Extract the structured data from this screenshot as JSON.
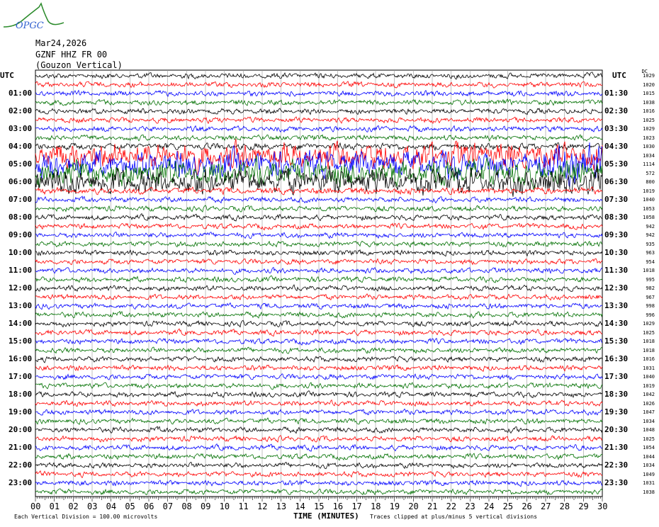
{
  "logo": {
    "text": "OPGC"
  },
  "header": {
    "date": "Mar24,2026",
    "station": "GZNF HHZ FR 00",
    "name": "(Gouzon Vertical)"
  },
  "chart_data": {
    "type": "line",
    "subtype": "helicorder",
    "left_axis_title": "UTC",
    "right_axis_title": "UTC",
    "right_column_header": "DC",
    "left_labels": [
      "01:00",
      "02:00",
      "03:00",
      "04:00",
      "05:00",
      "06:00",
      "07:00",
      "08:00",
      "09:00",
      "10:00",
      "11:00",
      "12:00",
      "13:00",
      "14:00",
      "15:00",
      "16:00",
      "17:00",
      "18:00",
      "19:00",
      "20:00",
      "21:00",
      "22:00",
      "23:00"
    ],
    "right_labels": [
      "01:30",
      "02:30",
      "03:30",
      "04:30",
      "05:30",
      "06:30",
      "07:30",
      "08:30",
      "09:30",
      "10:30",
      "11:30",
      "12:30",
      "13:30",
      "14:30",
      "15:30",
      "16:30",
      "17:30",
      "18:30",
      "19:30",
      "20:30",
      "21:30",
      "22:30",
      "23:30"
    ],
    "row_start_times": "00:00 to 23:30 every 30 minutes",
    "dc_offsets": [
      1029,
      1020,
      1015,
      1038,
      1016,
      1025,
      1029,
      1023,
      1030,
      1034,
      1114,
      572,
      800,
      1019,
      1040,
      1053,
      1058,
      942,
      942,
      935,
      963,
      954,
      1018,
      995,
      982,
      967,
      998,
      996,
      1029,
      1025,
      1018,
      1018,
      1016,
      1031,
      1040,
      1019,
      1042,
      1026,
      1047,
      1034,
      1048,
      1025,
      1054,
      1044,
      1034,
      1049,
      1031,
      1038
    ],
    "trace_colors": [
      "#000000",
      "#ff0000",
      "#0000ff",
      "#007000"
    ],
    "x_ticks": [
      "00",
      "01",
      "02",
      "03",
      "04",
      "05",
      "06",
      "07",
      "08",
      "09",
      "10",
      "11",
      "12",
      "13",
      "14",
      "15",
      "16",
      "17",
      "18",
      "19",
      "20",
      "21",
      "22",
      "23",
      "24",
      "25",
      "26",
      "27",
      "28",
      "29",
      "30"
    ],
    "xlabel": "TIME (MINUTES)",
    "xlim": [
      0,
      30
    ],
    "grid": true,
    "notes": {
      "scale": "Each Vertical Division =  100.00 microvolts",
      "clip": "Traces clipped at plus/minus 5 vertical divisions"
    }
  }
}
